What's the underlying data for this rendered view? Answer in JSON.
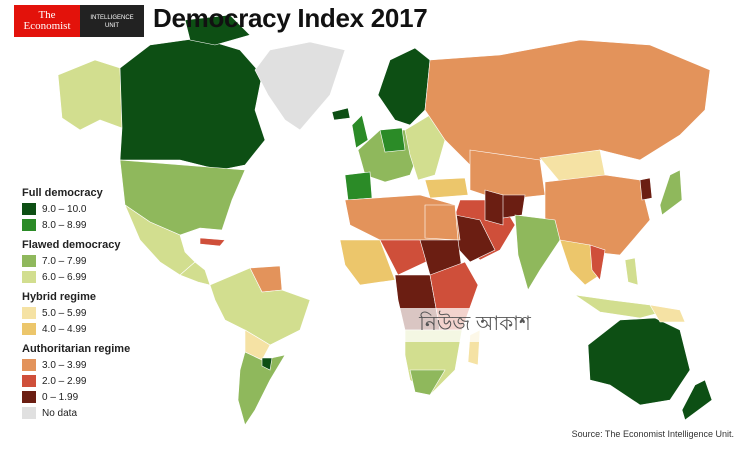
{
  "header": {
    "logo": {
      "line1": "The",
      "line2": "Economist",
      "unit_line1": "INTELLIGENCE",
      "unit_line2": "UNIT"
    },
    "title": "Democracy Index 2017"
  },
  "legend": {
    "groups": [
      {
        "label": "Full democracy",
        "items": [
          {
            "range": "9.0 – 10.0",
            "color": "#0d4f14"
          },
          {
            "range": "8.0 – 8.99",
            "color": "#2b8b27"
          }
        ]
      },
      {
        "label": "Flawed democracy",
        "items": [
          {
            "range": "7.0 – 7.99",
            "color": "#8fb85c"
          },
          {
            "range": "6.0 – 6.99",
            "color": "#d2de8f"
          }
        ]
      },
      {
        "label": "Hybrid regime",
        "items": [
          {
            "range": "5.0 – 5.99",
            "color": "#f5e2a4"
          },
          {
            "range": "4.0 – 4.99",
            "color": "#ecc66b"
          }
        ]
      },
      {
        "label": "Authoritarian regime",
        "items": [
          {
            "range": "3.0 – 3.99",
            "color": "#e3935b"
          },
          {
            "range": "2.0 – 2.99",
            "color": "#cf4f3a"
          },
          {
            "range": "0 – 1.99",
            "color": "#6b1e12"
          }
        ]
      }
    ],
    "no_data": {
      "label": "No data",
      "color": "#e0e0e0"
    }
  },
  "source": "Source: The Economist Intelligence Unit.",
  "watermark": "নিউজ আকাশ"
}
